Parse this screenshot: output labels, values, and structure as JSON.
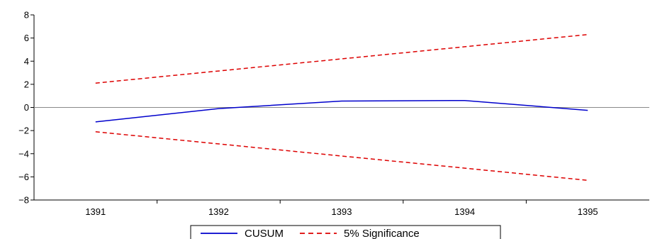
{
  "chart_data": {
    "type": "line",
    "categories": [
      "1391",
      "1392",
      "1393",
      "1394",
      "1395"
    ],
    "series": [
      {
        "name": "CUSUM",
        "values": [
          -1.25,
          -0.1,
          0.55,
          0.6,
          -0.25
        ],
        "color": "#0000cc",
        "style": "solid"
      },
      {
        "name": "5% Significance",
        "values": [
          2.1,
          3.15,
          4.2,
          5.25,
          6.3
        ],
        "color": "#dd0000",
        "style": "dashed"
      },
      {
        "name": "5% Significance",
        "values": [
          -2.1,
          -3.15,
          -4.2,
          -5.25,
          -6.3
        ],
        "color": "#dd0000",
        "style": "dashed",
        "legend": false
      }
    ],
    "yticks": [
      8,
      6,
      4,
      2,
      0,
      -2,
      -4,
      -6,
      -8
    ],
    "ylim": [
      -8,
      8
    ],
    "zero_line": true,
    "grid": false,
    "legend_position": "bottom-center"
  }
}
